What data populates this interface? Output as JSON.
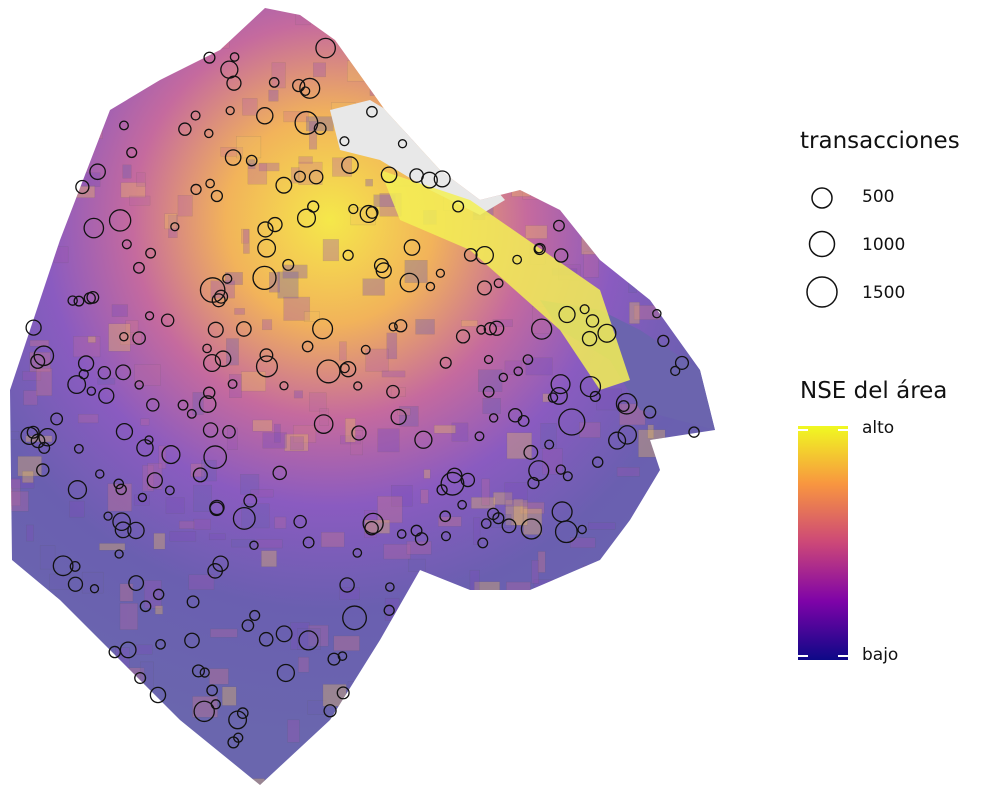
{
  "legend_size": {
    "title": "transacciones",
    "items": [
      {
        "label": "500",
        "value": 500
      },
      {
        "label": "1000",
        "value": 1000
      },
      {
        "label": "1500",
        "value": 1500
      }
    ]
  },
  "legend_color": {
    "title": "NSE del área",
    "high_label": "alto",
    "low_label": "bajo",
    "colors": [
      "#f0f921",
      "#f89540",
      "#cc4778",
      "#7e03a8",
      "#0d0887"
    ]
  }
}
